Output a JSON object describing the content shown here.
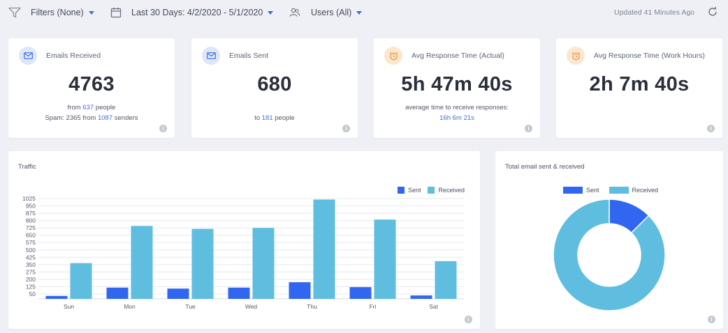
{
  "toolbar": {
    "filters_label": "Filters (None)",
    "date_label": "Last 30 Days: 4/2/2020 - 5/1/2020",
    "users_label": "Users (All)",
    "updated_text": "Updated 41 Minutes Ago",
    "icons": {
      "filter": "funnel-icon",
      "date": "calendar-icon",
      "users": "users-icon",
      "refresh": "refresh-icon"
    }
  },
  "colors": {
    "sent": "#3167f0",
    "received": "#5fbde0",
    "link": "#3e6fd9"
  },
  "stats": [
    {
      "title": "Emails Received",
      "value": "4763",
      "line1": {
        "pre": "from ",
        "link": "637",
        "post": " people"
      },
      "line2": {
        "pre": "Spam: 2365 from ",
        "link": "1087",
        "post": " senders"
      },
      "icon": "mail-in-icon"
    },
    {
      "title": "Emails Sent",
      "value": "680",
      "line1": {
        "pre": "to ",
        "link": "181",
        "post": " people"
      },
      "icon": "mail-out-icon"
    },
    {
      "title": "Avg Response Time (Actual)",
      "value": "5h 47m 40s",
      "line1_text": "average time to receive responses:",
      "line2_link": "16h 6m 21s",
      "icon": "alarm-clock-icon"
    },
    {
      "title": "Avg Response Time (Work Hours)",
      "value": "2h 7m 40s",
      "icon": "alarm-clock-icon"
    }
  ],
  "traffic": {
    "title": "Traffic",
    "legend": [
      "Sent",
      "Received"
    ]
  },
  "donut": {
    "title": "Total email sent & received",
    "legend": [
      "Sent",
      "Received"
    ]
  },
  "chart_data": [
    {
      "type": "bar",
      "title": "Traffic",
      "categories": [
        "Sun",
        "Mon",
        "Tue",
        "Wed",
        "Thu",
        "Fri",
        "Sat"
      ],
      "series": [
        {
          "name": "Sent",
          "values": [
            30,
            115,
            105,
            115,
            170,
            120,
            35
          ]
        },
        {
          "name": "Received",
          "values": [
            365,
            745,
            715,
            725,
            1015,
            810,
            385
          ]
        }
      ],
      "yticks": [
        50,
        125,
        200,
        275,
        350,
        425,
        500,
        575,
        650,
        725,
        800,
        875,
        950,
        1025
      ],
      "ylim": [
        0,
        1025
      ],
      "legend": "top-right",
      "grid": true
    },
    {
      "type": "pie",
      "title": "Total email sent & received",
      "labels": [
        "Sent",
        "Received"
      ],
      "values": [
        680,
        4763
      ],
      "legend": "top"
    }
  ]
}
